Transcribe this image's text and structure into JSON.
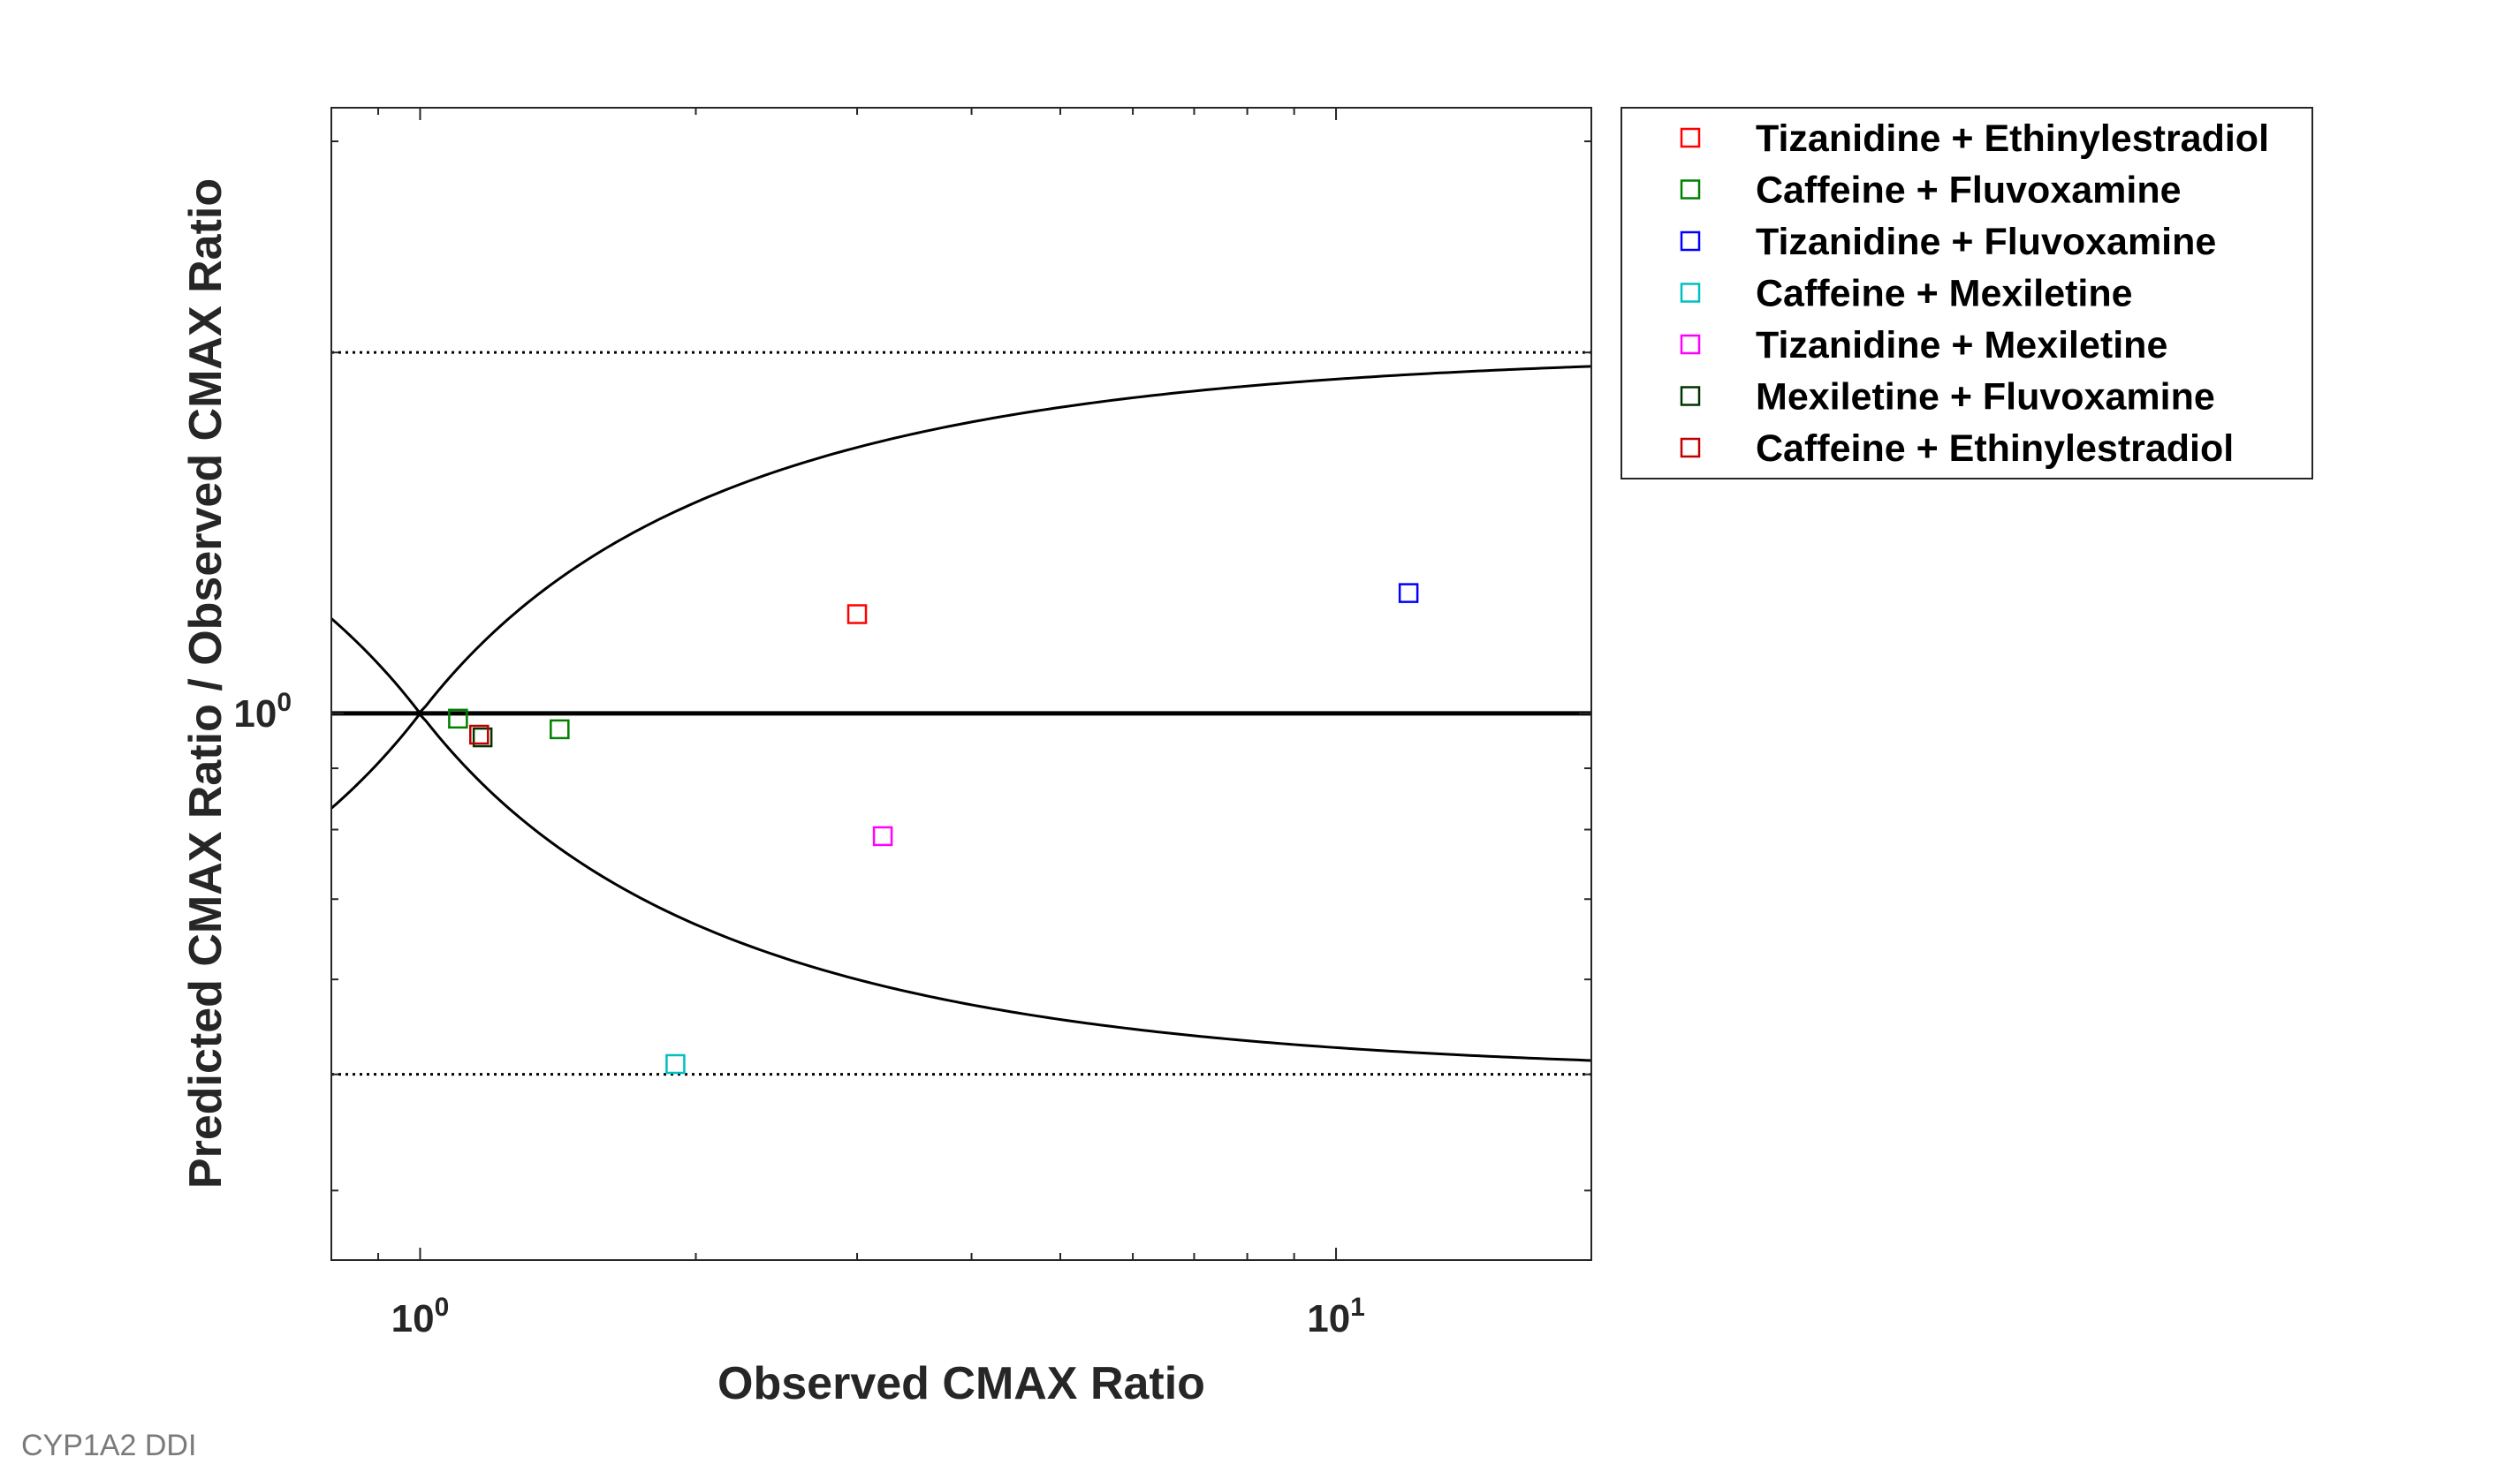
{
  "footer": {
    "text": "CYP1A2 DDI"
  },
  "chart_data": {
    "type": "scatter",
    "xlabel": "Observed CMAX Ratio",
    "ylabel": "Predicted CMAX Ratio / Observed CMAX Ratio",
    "xscale": "log",
    "yscale": "log",
    "xlim": [
      0.8,
      19
    ],
    "ylim": [
      0.35,
      3.2
    ],
    "x_ticks": [
      {
        "value": 1,
        "base": "10",
        "exp": "0"
      },
      {
        "value": 10,
        "base": "10",
        "exp": "1"
      }
    ],
    "y_ticks": [
      {
        "value": 1,
        "base": "10",
        "exp": "0"
      }
    ],
    "grid": false,
    "legend": "outside-top-right",
    "reference_lines": [
      {
        "kind": "horizontal",
        "y": 1,
        "style": "solid-thick"
      },
      {
        "kind": "horizontal",
        "y": 2,
        "style": "dotted"
      },
      {
        "kind": "horizontal",
        "y": 0.5,
        "style": "dotted"
      },
      {
        "kind": "guest-limits",
        "delta": 1,
        "style": "solid"
      }
    ],
    "series": [
      {
        "name": "Tizanidine + Ethinylestradiol",
        "color": "#ff0000",
        "marker": "square",
        "points": [
          [
            3.0,
            1.21
          ]
        ]
      },
      {
        "name": "Caffeine + Fluvoxamine",
        "color": "#008000",
        "marker": "square",
        "points": [
          [
            1.1,
            0.99
          ],
          [
            1.42,
            0.97
          ]
        ]
      },
      {
        "name": "Tizanidine + Fluvoxamine",
        "color": "#0000ff",
        "marker": "square",
        "points": [
          [
            12.0,
            1.26
          ]
        ]
      },
      {
        "name": "Caffeine + Mexiletine",
        "color": "#00bfbf",
        "marker": "square",
        "points": [
          [
            1.9,
            0.51
          ]
        ]
      },
      {
        "name": "Tizanidine + Mexiletine",
        "color": "#ff00ff",
        "marker": "square",
        "points": [
          [
            3.2,
            0.79
          ]
        ]
      },
      {
        "name": "Mexiletine + Fluvoxamine",
        "color": "#003300",
        "marker": "square",
        "points": [
          [
            1.17,
            0.955
          ]
        ]
      },
      {
        "name": "Caffeine + Ethinylestradiol",
        "color": "#c00000",
        "marker": "square",
        "points": [
          [
            1.16,
            0.96
          ]
        ]
      }
    ]
  }
}
